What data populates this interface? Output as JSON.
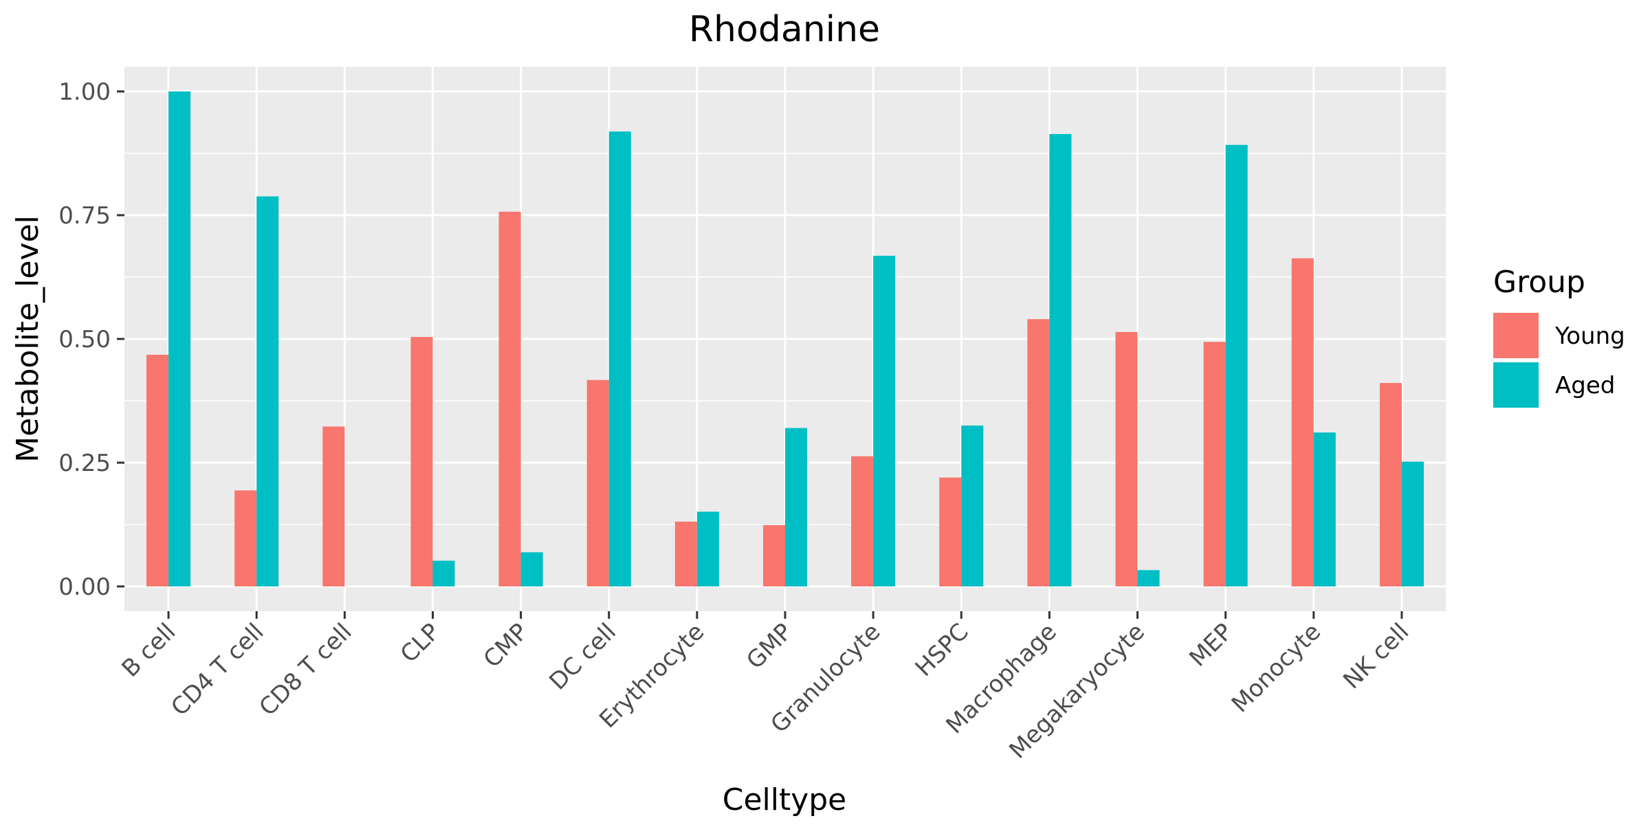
{
  "chart_data": {
    "type": "bar",
    "title": "Rhodanine",
    "xlabel": "Celltype",
    "ylabel": "Metabolite_level",
    "categories": [
      "B cell",
      "CD4 T cell",
      "CD8 T cell",
      "CLP",
      "CMP",
      "DC cell",
      "Erythrocyte",
      "GMP",
      "Granulocyte",
      "HSPC",
      "Macrophage",
      "Megakaryocyte",
      "MEP",
      "Monocyte",
      "NK cell"
    ],
    "series": [
      {
        "name": "Young",
        "color": "#F8766D",
        "values": [
          0.468,
          0.194,
          0.323,
          0.504,
          0.757,
          0.417,
          0.131,
          0.124,
          0.263,
          0.22,
          0.54,
          0.514,
          0.494,
          0.663,
          0.411
        ]
      },
      {
        "name": "Aged",
        "color": "#00BFC4",
        "values": [
          1.0,
          0.788,
          0.0,
          0.052,
          0.069,
          0.919,
          0.151,
          0.32,
          0.668,
          0.325,
          0.914,
          0.033,
          0.892,
          0.311,
          0.252
        ]
      }
    ],
    "yticks": [
      0.0,
      0.25,
      0.5,
      0.75,
      1.0
    ],
    "ytick_labels": [
      "0.00",
      "0.25",
      "0.50",
      "0.75",
      "1.00"
    ],
    "ylim": [
      -0.05,
      1.05
    ],
    "grid": true,
    "legend": {
      "title": "Group",
      "position": "right"
    }
  }
}
